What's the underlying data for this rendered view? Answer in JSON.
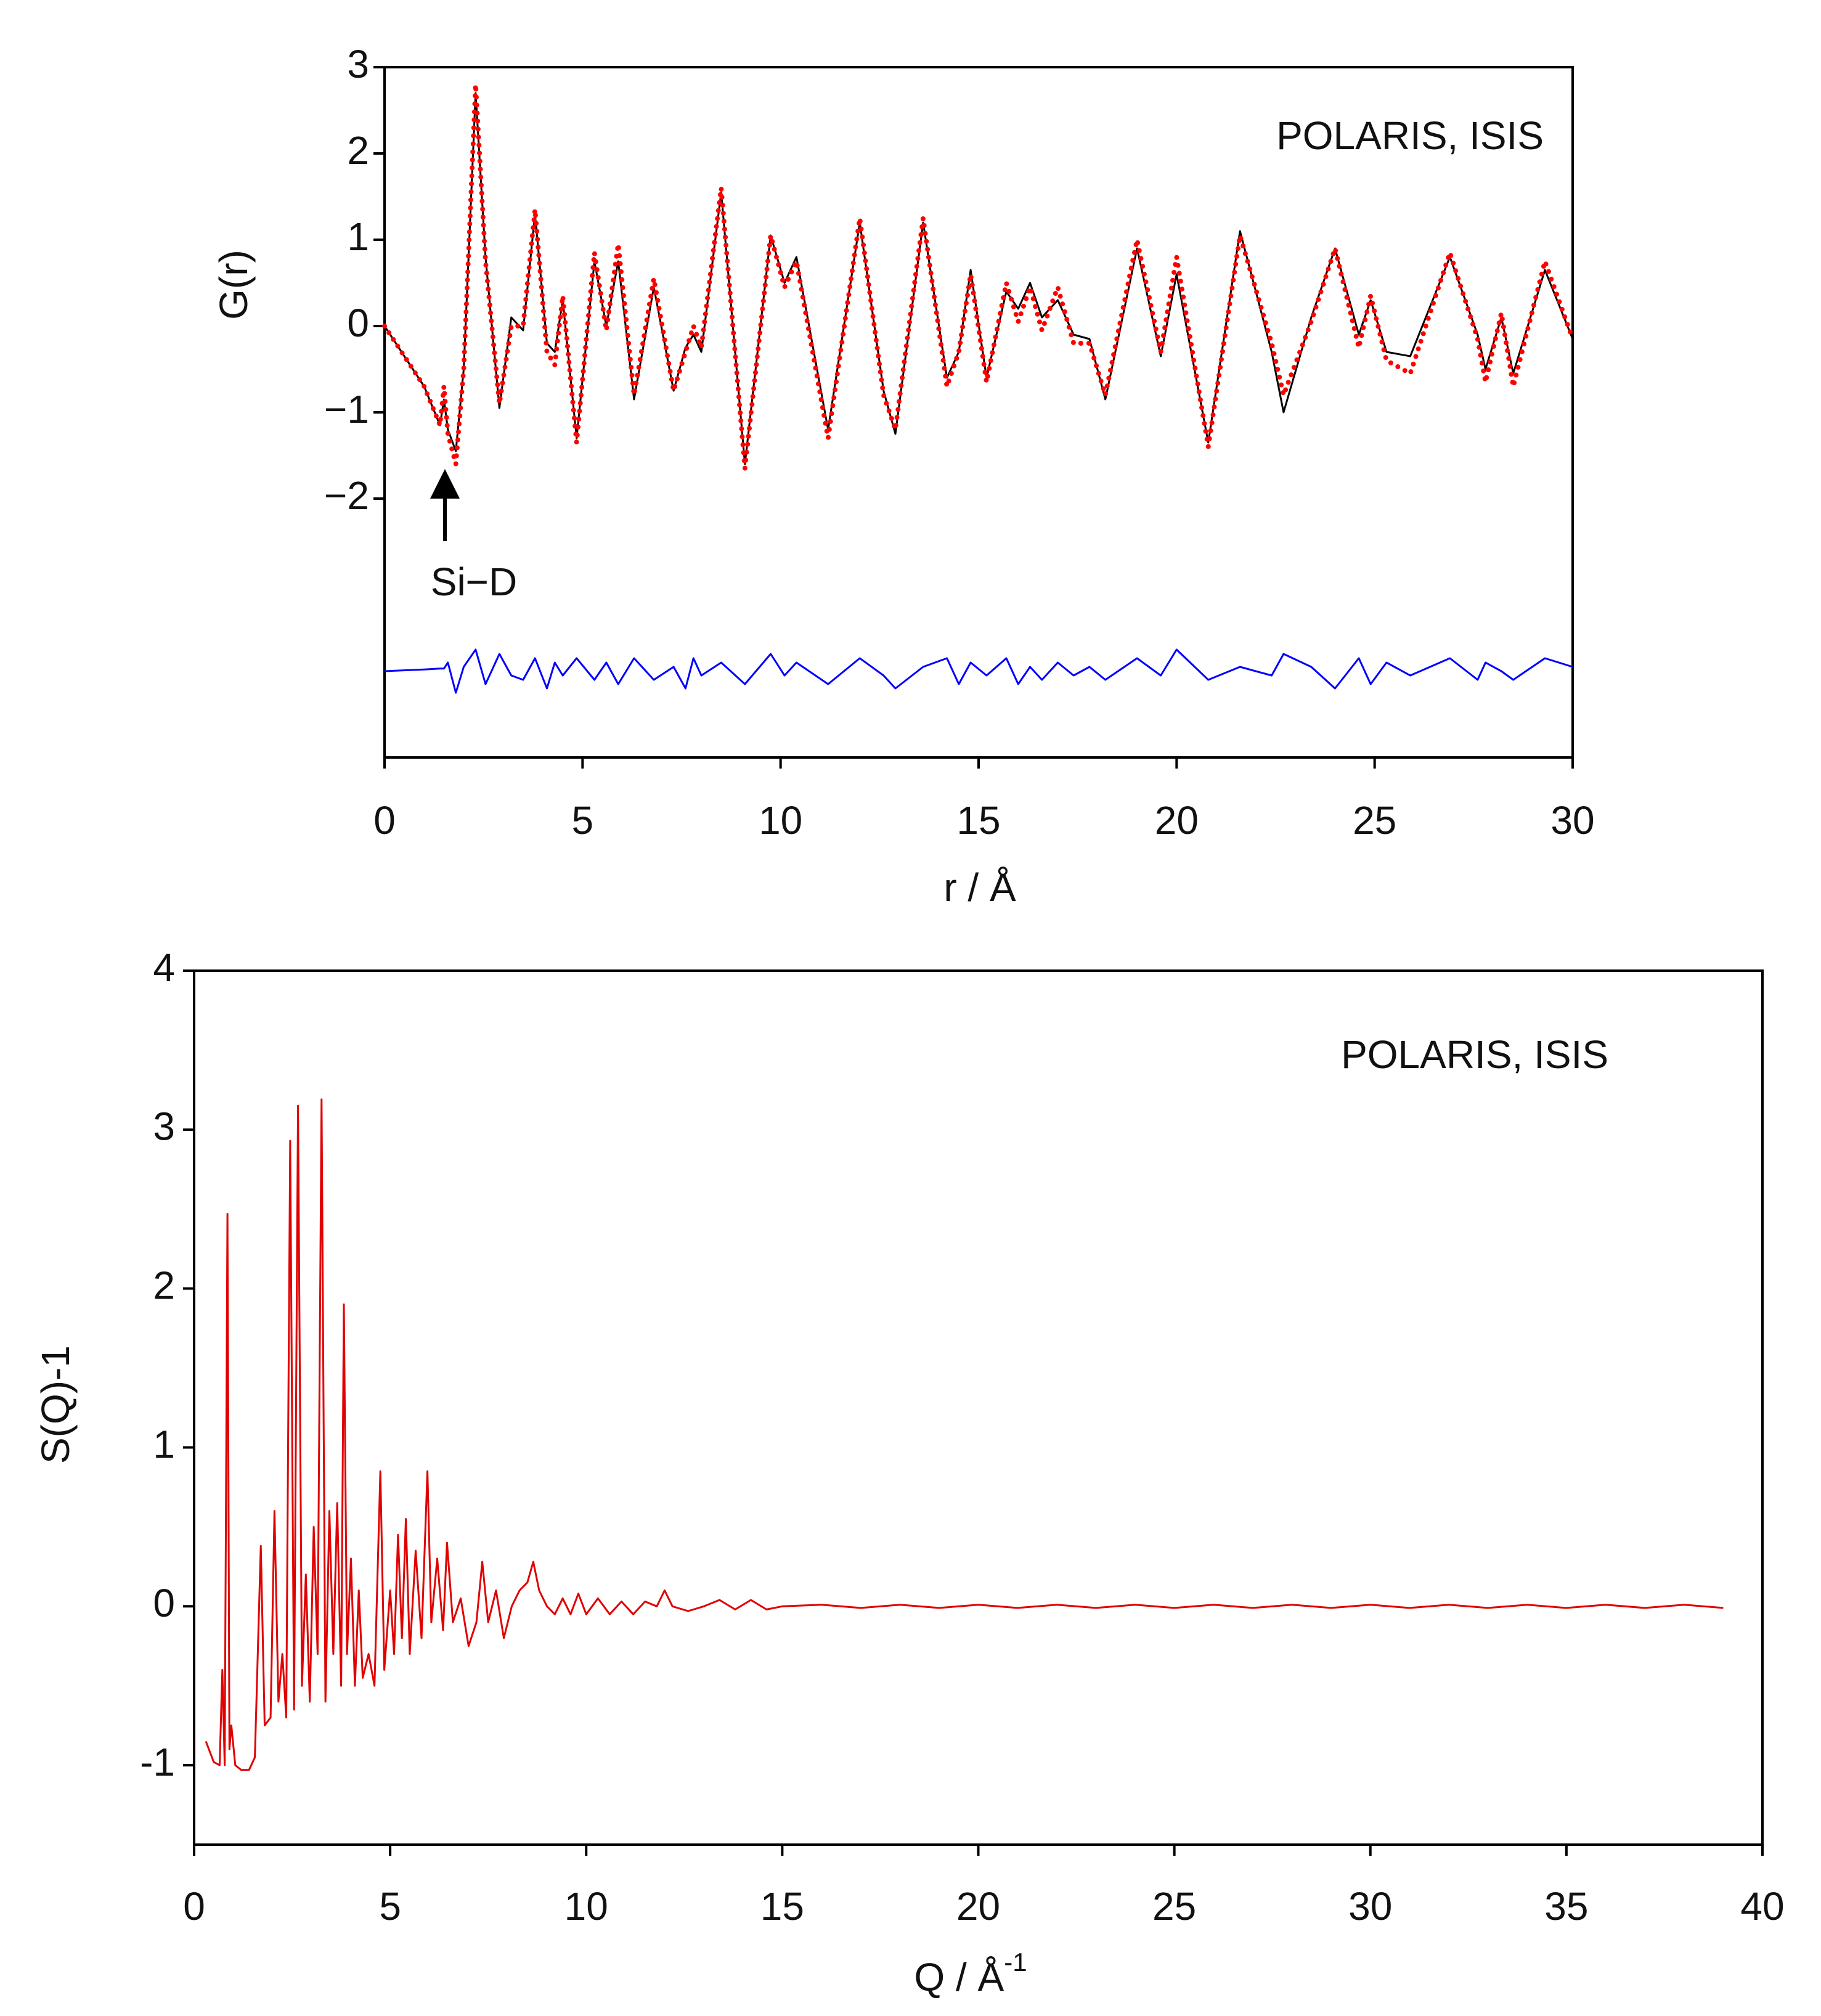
{
  "chart_data": [
    {
      "type": "line",
      "annotation": "POLARIS, ISIS",
      "arrow_label": "Si−D",
      "y_label": "G(r)",
      "x_label": "r / Å",
      "xlim": [
        0,
        30
      ],
      "xticks": [
        0,
        5,
        10,
        15,
        20,
        25,
        30
      ],
      "ylim": [
        -5,
        3
      ],
      "yticks": [
        {
          "value": -2,
          "label": "−2"
        },
        {
          "value": -1,
          "label": "−1"
        },
        0,
        1,
        2,
        3
      ],
      "x": [
        0,
        1.0,
        1.4,
        1.5,
        1.6,
        1.8,
        2.0,
        2.3,
        2.55,
        2.9,
        3.2,
        3.5,
        3.8,
        4.1,
        4.3,
        4.5,
        4.85,
        5.3,
        5.6,
        5.9,
        6.3,
        6.8,
        7.3,
        7.6,
        7.8,
        8.0,
        8.5,
        9.1,
        9.75,
        10.1,
        10.4,
        11.2,
        12.0,
        12.6,
        12.9,
        13.6,
        14.2,
        14.5,
        14.8,
        15.2,
        15.7,
        16.0,
        16.3,
        16.6,
        17.0,
        17.4,
        17.8,
        18.2,
        19.0,
        19.6,
        20.0,
        20.8,
        21.6,
        22.4,
        22.7,
        23.4,
        24.0,
        24.6,
        24.9,
        25.3,
        25.9,
        26.9,
        27.6,
        27.8,
        28.2,
        28.5,
        29.3,
        30
      ],
      "series": [
        {
          "color": "#000000",
          "marker": "line",
          "values": [
            0,
            -0.7,
            -1.15,
            -0.85,
            -1.2,
            -1.45,
            -0.5,
            2.7,
            0.8,
            -0.95,
            0.1,
            -0.05,
            1.3,
            -0.2,
            -0.3,
            0.3,
            -1.3,
            0.75,
            0.0,
            0.75,
            -0.85,
            0.45,
            -0.75,
            -0.25,
            -0.1,
            -0.3,
            1.55,
            -1.6,
            1.05,
            0.5,
            0.8,
            -1.2,
            1.2,
            -0.75,
            -1.25,
            1.2,
            -0.6,
            -0.3,
            0.65,
            -0.6,
            0.4,
            0.2,
            0.5,
            0.1,
            0.3,
            -0.1,
            -0.15,
            -0.85,
            0.9,
            -0.35,
            0.6,
            -1.35,
            1.1,
            -0.3,
            -1.0,
            0.1,
            0.9,
            -0.1,
            0.3,
            -0.3,
            -0.35,
            0.8,
            -0.1,
            -0.5,
            0.1,
            -0.55,
            0.65,
            -0.15
          ]
        },
        {
          "color": "#ff0000",
          "marker": "dot",
          "values": [
            0,
            -0.7,
            -1.15,
            -0.7,
            -1.25,
            -1.6,
            -0.5,
            2.8,
            0.75,
            -0.9,
            0.0,
            0.0,
            1.35,
            -0.3,
            -0.45,
            0.35,
            -1.35,
            0.85,
            -0.05,
            0.95,
            -0.8,
            0.55,
            -0.75,
            -0.3,
            0.0,
            -0.25,
            1.6,
            -1.65,
            1.05,
            0.45,
            0.75,
            -1.3,
            1.25,
            -0.8,
            -1.2,
            1.25,
            -0.7,
            -0.3,
            0.6,
            -0.65,
            0.5,
            0.05,
            0.45,
            -0.05,
            0.45,
            -0.2,
            -0.2,
            -0.8,
            1.0,
            -0.3,
            0.8,
            -1.4,
            1.05,
            -0.2,
            -0.8,
            0.05,
            0.9,
            -0.25,
            0.35,
            -0.4,
            -0.55,
            0.85,
            -0.15,
            -0.65,
            0.15,
            -0.7,
            0.75,
            -0.15
          ]
        },
        {
          "color": "#0000ff",
          "marker": "line",
          "values": [
            -4.0,
            -3.98,
            -3.97,
            -3.97,
            -3.9,
            -4.25,
            -3.95,
            -3.75,
            -4.15,
            -3.8,
            -4.05,
            -4.1,
            -3.85,
            -4.2,
            -3.9,
            -4.05,
            -3.85,
            -4.1,
            -3.9,
            -4.15,
            -3.85,
            -4.1,
            -3.95,
            -4.2,
            -3.85,
            -4.05,
            -3.9,
            -4.15,
            -3.8,
            -4.05,
            -3.9,
            -4.15,
            -3.85,
            -4.05,
            -4.2,
            -3.95,
            -3.85,
            -4.15,
            -3.9,
            -4.05,
            -3.85,
            -4.15,
            -3.95,
            -4.1,
            -3.9,
            -4.05,
            -3.95,
            -4.1,
            -3.85,
            -4.05,
            -3.75,
            -4.1,
            -3.95,
            -4.05,
            -3.8,
            -3.95,
            -4.2,
            -3.85,
            -4.15,
            -3.9,
            -4.05,
            -3.85,
            -4.1,
            -3.9,
            -4.0,
            -4.1,
            -3.85,
            -3.95
          ]
        }
      ]
    },
    {
      "type": "line",
      "annotation": "POLARIS, ISIS",
      "y_label": "S(Q)-1",
      "x_label": "Q / Å",
      "x_label_superscript": "-1",
      "xlim": [
        0,
        40
      ],
      "xticks": [
        0,
        5,
        10,
        15,
        20,
        25,
        30,
        35,
        40
      ],
      "ylim": [
        -1.5,
        4
      ],
      "yticks": [
        -1,
        0,
        1,
        2,
        3,
        4
      ],
      "x": [
        0.3,
        0.5,
        0.65,
        0.72,
        0.78,
        0.85,
        0.9,
        0.95,
        1.05,
        1.2,
        1.4,
        1.55,
        1.7,
        1.8,
        1.95,
        2.05,
        2.15,
        2.25,
        2.35,
        2.45,
        2.55,
        2.65,
        2.75,
        2.85,
        2.95,
        3.05,
        3.15,
        3.25,
        3.35,
        3.45,
        3.55,
        3.65,
        3.75,
        3.82,
        3.9,
        4.0,
        4.1,
        4.2,
        4.3,
        4.45,
        4.6,
        4.75,
        4.85,
        5.0,
        5.1,
        5.2,
        5.3,
        5.4,
        5.5,
        5.65,
        5.8,
        5.95,
        6.05,
        6.2,
        6.35,
        6.45,
        6.6,
        6.8,
        7.0,
        7.2,
        7.35,
        7.5,
        7.7,
        7.9,
        8.1,
        8.3,
        8.5,
        8.65,
        8.8,
        9.0,
        9.2,
        9.4,
        9.6,
        9.8,
        10.0,
        10.3,
        10.6,
        10.9,
        11.2,
        11.5,
        11.8,
        12.0,
        12.2,
        12.6,
        13.0,
        13.4,
        13.8,
        14.2,
        14.6,
        15,
        16,
        17,
        18,
        19,
        20,
        21,
        22,
        23,
        24,
        25,
        26,
        27,
        28,
        29,
        30,
        31,
        32,
        33,
        34,
        35,
        36,
        37,
        38,
        39
      ],
      "series": [
        {
          "color": "#e00000",
          "marker": "line",
          "values": [
            -0.85,
            -0.98,
            -1.0,
            -0.4,
            -1.0,
            2.47,
            -0.9,
            -0.75,
            -1.0,
            -1.03,
            -1.03,
            -0.95,
            0.38,
            -0.75,
            -0.7,
            0.6,
            -0.6,
            -0.3,
            -0.7,
            2.93,
            -0.65,
            3.15,
            -0.5,
            0.2,
            -0.6,
            0.5,
            -0.3,
            3.19,
            -0.6,
            0.6,
            -0.3,
            0.65,
            -0.5,
            1.9,
            -0.3,
            0.3,
            -0.5,
            0.1,
            -0.45,
            -0.3,
            -0.5,
            0.85,
            -0.4,
            0.1,
            -0.3,
            0.45,
            -0.2,
            0.55,
            -0.3,
            0.35,
            -0.2,
            0.85,
            -0.1,
            0.3,
            -0.15,
            0.4,
            -0.1,
            0.05,
            -0.25,
            -0.1,
            0.28,
            -0.1,
            0.1,
            -0.2,
            0.0,
            0.1,
            0.15,
            0.28,
            0.1,
            0.0,
            -0.05,
            0.05,
            -0.05,
            0.08,
            -0.05,
            0.05,
            -0.05,
            0.03,
            -0.05,
            0.03,
            0.0,
            0.1,
            0.0,
            -0.03,
            0.0,
            0.04,
            -0.02,
            0.04,
            -0.02,
            0.0,
            0.01,
            -0.01,
            0.01,
            -0.01,
            0.01,
            -0.01,
            0.01,
            -0.01,
            0.01,
            -0.01,
            0.01,
            -0.01,
            0.01,
            -0.01,
            0.01,
            -0.01,
            0.01,
            -0.01,
            0.01,
            -0.01,
            0.01,
            -0.01,
            0.01,
            -0.01
          ]
        }
      ]
    }
  ]
}
